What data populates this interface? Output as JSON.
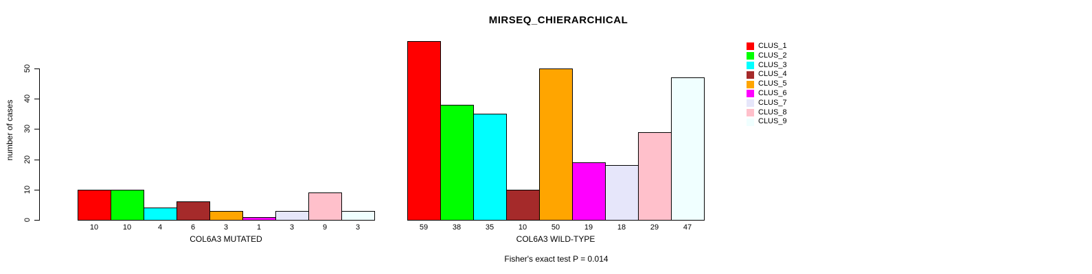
{
  "chart_data": {
    "type": "bar",
    "title": "MIRSEQ_CHIERARCHICAL",
    "ylabel": "number of cases",
    "categories": [
      "CLUS_1",
      "CLUS_2",
      "CLUS_3",
      "CLUS_4",
      "CLUS_5",
      "CLUS_6",
      "CLUS_7",
      "CLUS_8",
      "CLUS_9"
    ],
    "category_colors": [
      "#FF0000",
      "#00FF00",
      "#00FFFF",
      "#A52A2A",
      "#FFA500",
      "#FF00FF",
      "#E6E6FA",
      "#FFC0CB",
      "#F0FFFF"
    ],
    "series": [
      {
        "name": "COL6A3 MUTATED",
        "values": [
          10,
          10,
          4,
          6,
          3,
          1,
          3,
          9,
          3
        ]
      },
      {
        "name": "COL6A3 WILD-TYPE",
        "values": [
          59,
          38,
          35,
          10,
          50,
          19,
          18,
          29,
          47
        ]
      }
    ],
    "yticks": [
      0,
      10,
      20,
      30,
      40,
      50
    ],
    "ylim": [
      0,
      59
    ],
    "grid": false,
    "legend_position": "right",
    "bar_border_color": "#000000",
    "annotation": "Fisher's exact test P = 0.014"
  }
}
